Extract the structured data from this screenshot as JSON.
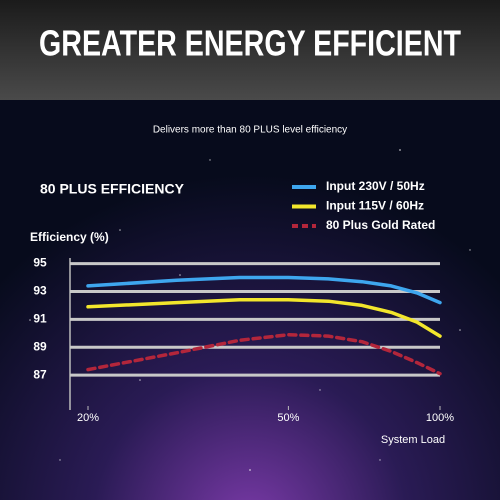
{
  "header": {
    "title": "GREATER ENERGY EFFICIENT",
    "subtitle": "Delivers more than 80 PLUS level efficiency"
  },
  "chart_data": {
    "type": "line",
    "title": "80 PLUS EFFICIENCY",
    "y_label": "Efficiency (%)",
    "x_label": "System Load",
    "x": [
      20,
      30,
      40,
      50,
      60,
      70,
      80,
      90,
      100
    ],
    "xscale": "log",
    "xlim": [
      20,
      100
    ],
    "xticks": [
      {
        "value": 20,
        "label": "20%"
      },
      {
        "value": 50,
        "label": "50%"
      },
      {
        "value": 100,
        "label": "100%"
      }
    ],
    "ylim": [
      84.5,
      95.4
    ],
    "yticks": [
      87,
      89,
      91,
      93,
      95
    ],
    "grid": true,
    "series": [
      {
        "name": "Input 230V / 50Hz",
        "color": "#3ea6ee",
        "line_style": "solid",
        "values": [
          93.4,
          93.8,
          94.0,
          94.0,
          93.9,
          93.7,
          93.4,
          92.9,
          92.2
        ]
      },
      {
        "name": "Input 115V / 60Hz",
        "color": "#f2e62c",
        "line_style": "solid",
        "values": [
          91.9,
          92.2,
          92.4,
          92.4,
          92.3,
          92.0,
          91.5,
          90.8,
          89.8
        ]
      },
      {
        "name": "80 Plus Gold Rated",
        "color": "#b3263b",
        "line_style": "dashed",
        "values": [
          87.4,
          88.6,
          89.5,
          89.9,
          89.8,
          89.4,
          88.7,
          87.9,
          87.1
        ]
      }
    ]
  }
}
